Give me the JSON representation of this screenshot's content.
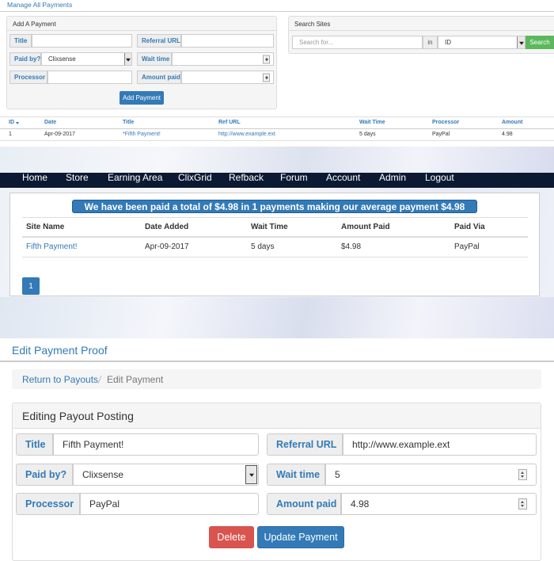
{
  "admin": {
    "heading": "Manage All Payments",
    "add_panel": {
      "title": "Add A Payment",
      "labels": [
        "Title",
        "Referral URL",
        "Paid by?",
        "Wait time",
        "Processor",
        "Amount paid"
      ],
      "paid_by": "Clixsense",
      "button": "Add Payment"
    },
    "search_panel": {
      "title": "Search Sites",
      "placeholder": "Search for...",
      "in": "in",
      "field": "ID",
      "button": "Search"
    },
    "table": {
      "columns": [
        "ID",
        "Date",
        "Title",
        "Ref URL",
        "Wait Time",
        "Processor",
        "Amount"
      ],
      "rows": [
        [
          "1",
          "Apr-09-2017",
          "*Fifth Payment!",
          "http://www.example.ext",
          "5 days",
          "PayPal",
          "4.98"
        ]
      ]
    }
  },
  "public": {
    "nav": [
      "Home",
      "Store",
      "Earning Area",
      "ClixGrid",
      "Refback",
      "Forum",
      "Account",
      "Admin",
      "Logout"
    ],
    "banner": "We have been paid a total of $4.98 in 1 payments making our average payment $4.98",
    "table": {
      "columns": [
        "Site Name",
        "Date Added",
        "Wait Time",
        "Amount Paid",
        "Paid Via"
      ],
      "rows": [
        [
          "Fifth Payment!",
          "Apr-09-2017",
          "5 days",
          "$4.98",
          "PayPal"
        ]
      ]
    },
    "page": "1"
  },
  "edit": {
    "heading": "Edit Payment Proof",
    "breadcrumb": [
      "Return to Payouts",
      "Edit Payment"
    ],
    "panel_title": "Editing Payout Posting",
    "fields": [
      {
        "label": "Title",
        "value": "Fifth Payment!"
      },
      {
        "label": "Referral URL",
        "value": "http://www.example.ext"
      },
      {
        "label": "Paid by?",
        "value": "Clixsense"
      },
      {
        "label": "Wait time",
        "value": "5"
      },
      {
        "label": "Processor",
        "value": "PayPal"
      },
      {
        "label": "Amount paid",
        "value": "4.98"
      }
    ],
    "buttons": [
      "Delete",
      "Update Payment"
    ]
  }
}
